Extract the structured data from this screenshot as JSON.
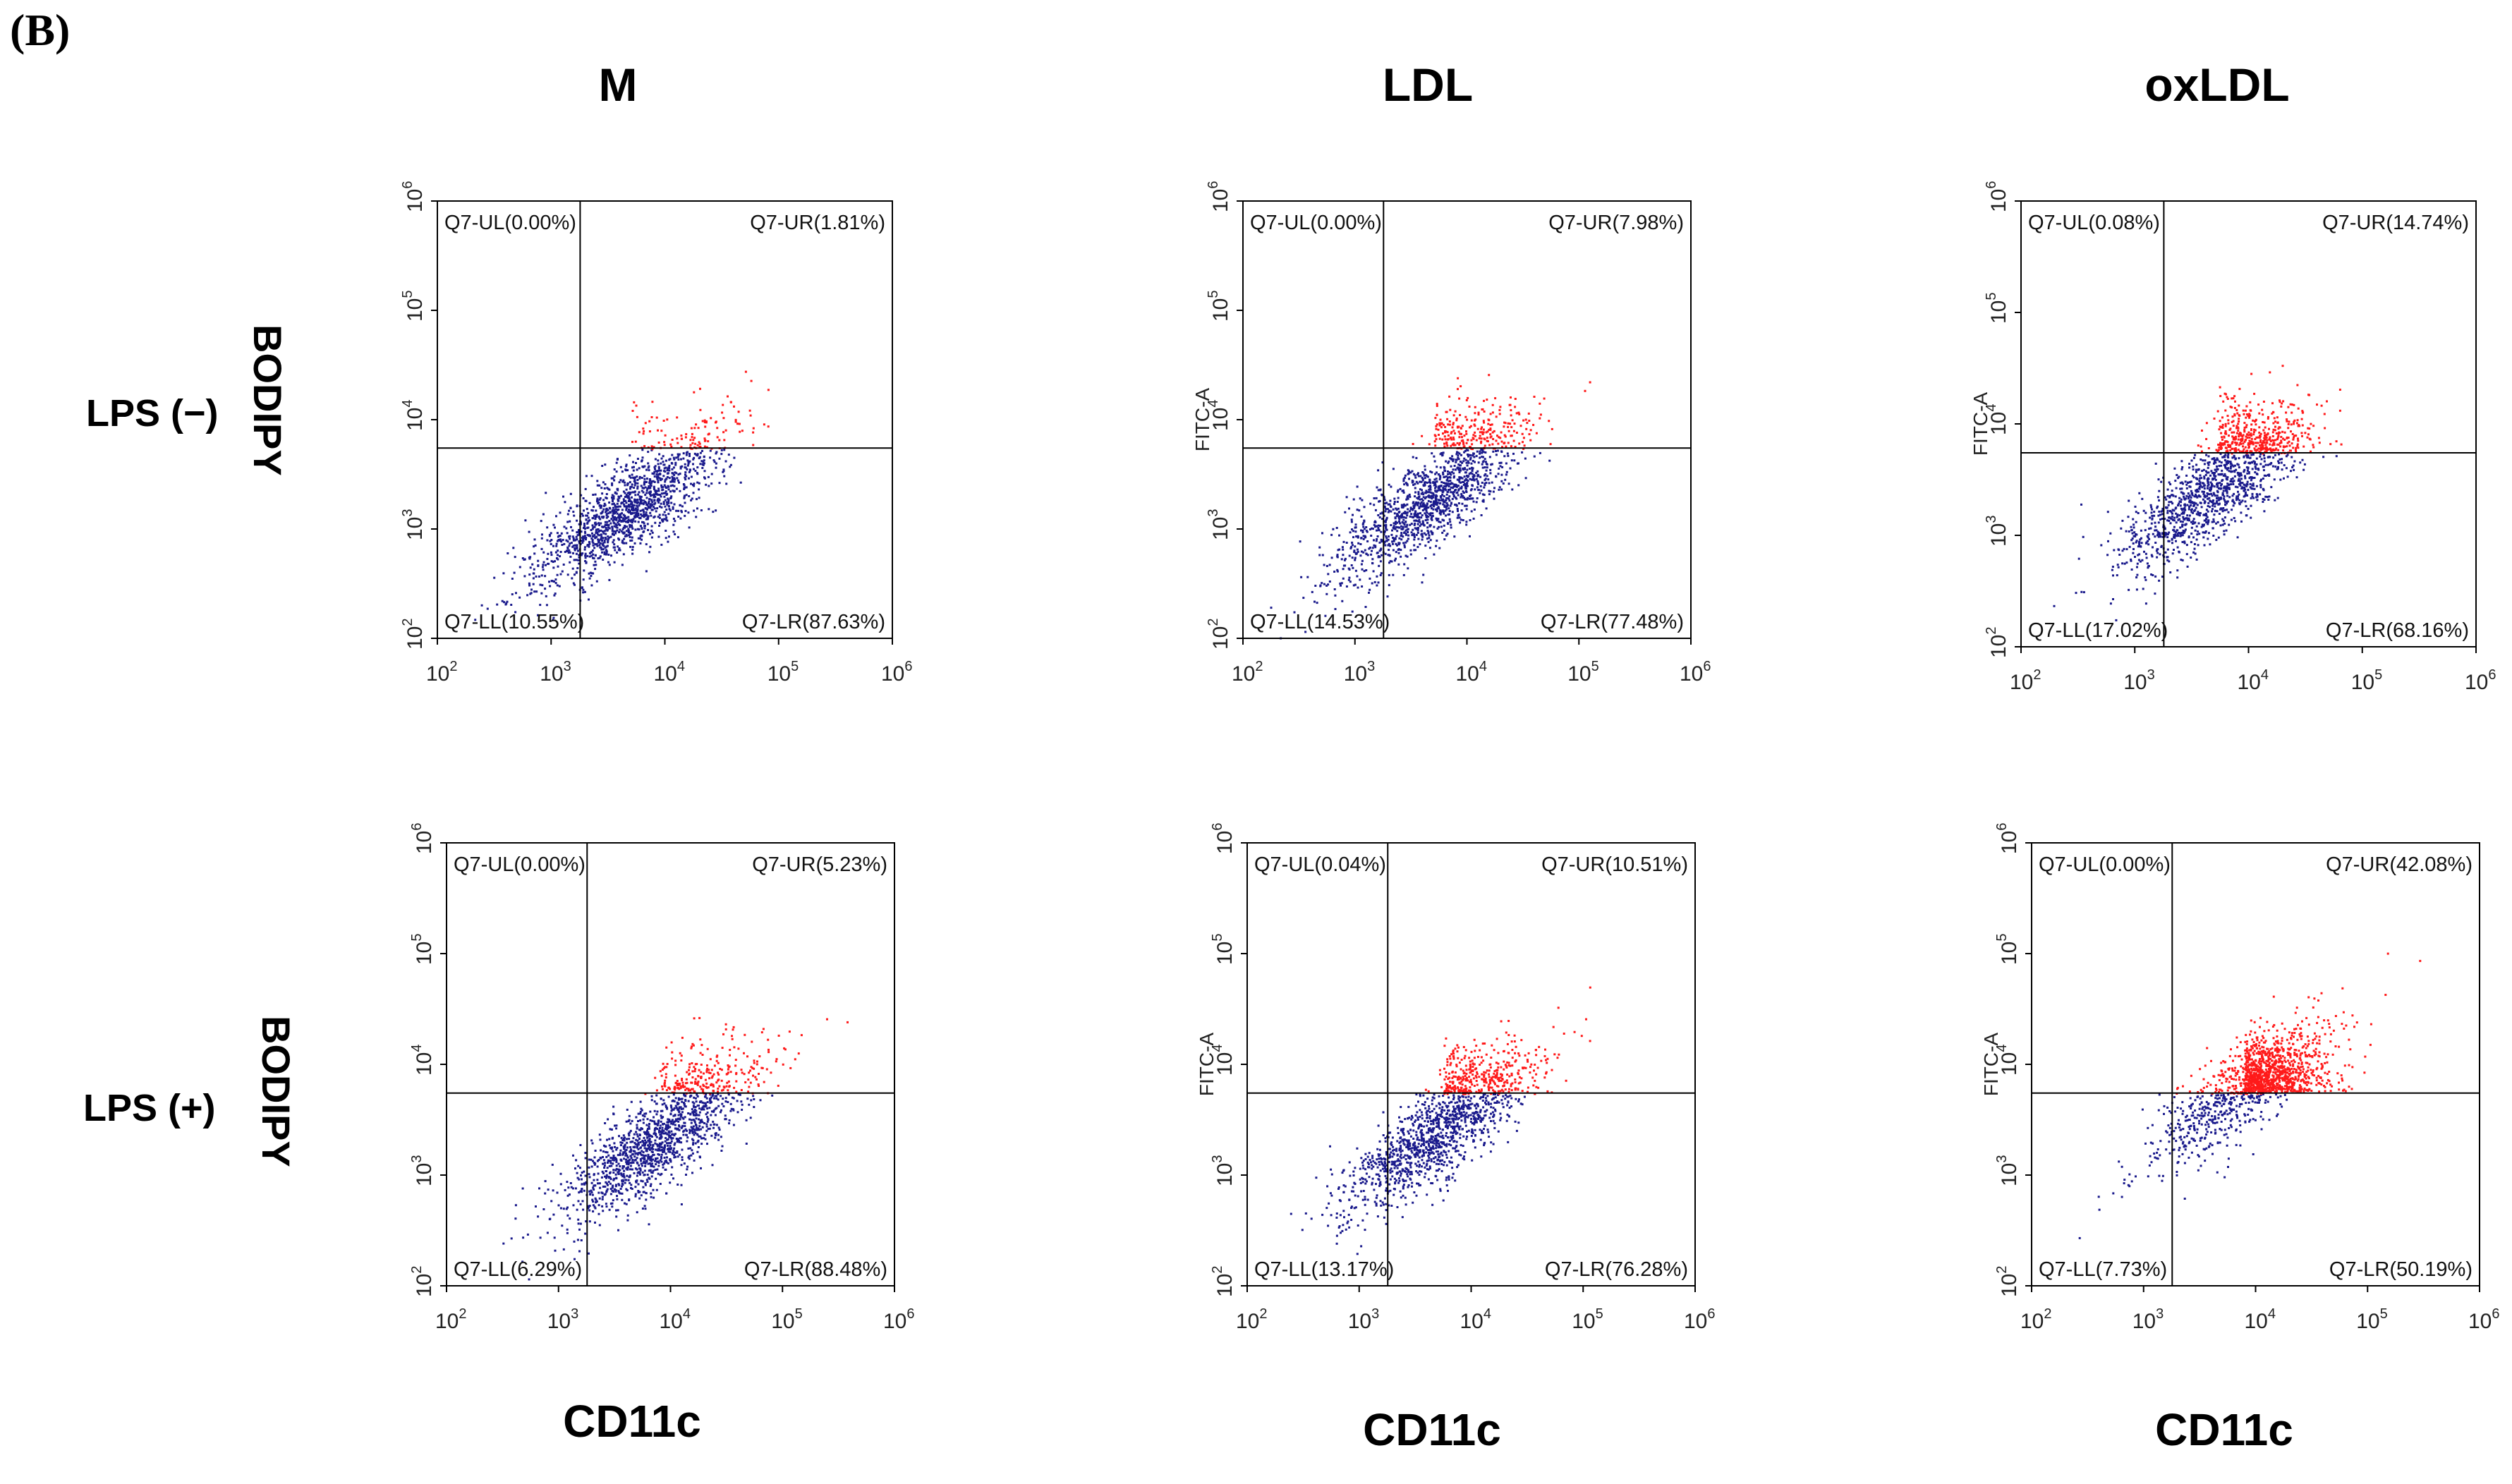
{
  "figure": {
    "panel_label": "(B)",
    "columns": [
      "M",
      "LDL",
      "oxLDL"
    ],
    "rows": [
      "LPS (−)",
      "LPS (+)"
    ],
    "y_marker": "BODIPY",
    "x_marker": "CD11c"
  },
  "chart_data": [
    {
      "type": "scatter",
      "title": "M",
      "row": "LPS (−)",
      "xscale": "log",
      "yscale": "log",
      "xlim": [
        100,
        1000000
      ],
      "ylim": [
        100,
        1000000
      ],
      "ylabel": "",
      "x_ticks": [
        "10",
        "10",
        "10",
        "10",
        "10"
      ],
      "x_tick_exp": [
        "2",
        "3",
        "4",
        "5",
        "6"
      ],
      "y_ticks": [
        "10",
        "10",
        "10",
        "10",
        "10"
      ],
      "y_tick_exp": [
        "2",
        "3",
        "4",
        "5",
        "6"
      ],
      "gate_x": 1800,
      "gate_y": 5500,
      "quadrants": {
        "UL": "Q7-UL(0.00%)",
        "UR": "Q7-UR(1.81%)",
        "LL": "Q7-LL(10.55%)",
        "LR": "Q7-LR(87.63%)"
      },
      "cloud": {
        "center_x": 4500,
        "center_y": 1500,
        "n_points": 1500,
        "ur_percent": 1.81
      }
    },
    {
      "type": "scatter",
      "title": "LDL",
      "row": "LPS (−)",
      "xscale": "log",
      "yscale": "log",
      "xlim": [
        100,
        1000000
      ],
      "ylim": [
        100,
        1000000
      ],
      "ylabel": "FITC-A",
      "x_ticks": [
        "10",
        "10",
        "10",
        "10",
        "10"
      ],
      "x_tick_exp": [
        "2",
        "3",
        "4",
        "5",
        "6"
      ],
      "y_ticks": [
        "10",
        "10",
        "10",
        "10",
        "10"
      ],
      "y_tick_exp": [
        "2",
        "3",
        "4",
        "5",
        "6"
      ],
      "gate_x": 1800,
      "gate_y": 5500,
      "quadrants": {
        "UL": "Q7-UL(0.00%)",
        "UR": "Q7-UR(7.98%)",
        "LL": "Q7-LL(14.53%)",
        "LR": "Q7-LR(77.48%)"
      },
      "cloud": {
        "center_x": 4500,
        "center_y": 1800,
        "n_points": 1500,
        "ur_percent": 7.98
      }
    },
    {
      "type": "scatter",
      "title": "oxLDL",
      "row": "LPS (−)",
      "xscale": "log",
      "yscale": "log",
      "xlim": [
        100,
        1000000
      ],
      "ylim": [
        100,
        1000000
      ],
      "ylabel": "FITC-A",
      "x_ticks": [
        "10",
        "10",
        "10",
        "10",
        "10"
      ],
      "x_tick_exp": [
        "2",
        "3",
        "4",
        "5",
        "6"
      ],
      "y_ticks": [
        "10",
        "10",
        "10",
        "10",
        "10"
      ],
      "y_tick_exp": [
        "2",
        "3",
        "4",
        "5",
        "6"
      ],
      "gate_x": 1800,
      "gate_y": 5500,
      "quadrants": {
        "UL": "Q7-UL(0.08%)",
        "UR": "Q7-UR(14.74%)",
        "LL": "Q7-LL(17.02%)",
        "LR": "Q7-LR(68.16%)"
      },
      "cloud": {
        "center_x": 4800,
        "center_y": 2500,
        "n_points": 1500,
        "ur_percent": 14.74
      }
    },
    {
      "type": "scatter",
      "title": "M",
      "row": "LPS (+)",
      "xscale": "log",
      "yscale": "log",
      "xlim": [
        100,
        1000000
      ],
      "ylim": [
        100,
        1000000
      ],
      "ylabel": "",
      "x_ticks": [
        "10",
        "10",
        "10",
        "10",
        "10"
      ],
      "x_tick_exp": [
        "2",
        "3",
        "4",
        "5",
        "6"
      ],
      "y_ticks": [
        "10",
        "10",
        "10",
        "10",
        "10"
      ],
      "y_tick_exp": [
        "2",
        "3",
        "4",
        "5",
        "6"
      ],
      "gate_x": 1800,
      "gate_y": 5500,
      "quadrants": {
        "UL": "Q7-UL(0.00%)",
        "UR": "Q7-UR(5.23%)",
        "LL": "Q7-LL(6.29%)",
        "LR": "Q7-LR(88.48%)"
      },
      "cloud": {
        "center_x": 7000,
        "center_y": 2000,
        "n_points": 1500,
        "ur_percent": 5.23
      }
    },
    {
      "type": "scatter",
      "title": "LDL",
      "row": "LPS (+)",
      "xscale": "log",
      "yscale": "log",
      "xlim": [
        100,
        1000000
      ],
      "ylim": [
        100,
        1000000
      ],
      "ylabel": "FITC-A",
      "x_ticks": [
        "10",
        "10",
        "10",
        "10",
        "10"
      ],
      "x_tick_exp": [
        "2",
        "3",
        "4",
        "5",
        "6"
      ],
      "y_ticks": [
        "10",
        "10",
        "10",
        "10",
        "10"
      ],
      "y_tick_exp": [
        "2",
        "3",
        "4",
        "5",
        "6"
      ],
      "gate_x": 1800,
      "gate_y": 5500,
      "quadrants": {
        "UL": "Q7-UL(0.04%)",
        "UR": "Q7-UR(10.51%)",
        "LL": "Q7-LL(13.17%)",
        "LR": "Q7-LR(76.28%)"
      },
      "cloud": {
        "center_x": 5000,
        "center_y": 2500,
        "n_points": 1500,
        "ur_percent": 10.51
      }
    },
    {
      "type": "scatter",
      "title": "oxLDL",
      "row": "LPS (+)",
      "xscale": "log",
      "yscale": "log",
      "xlim": [
        100,
        1000000
      ],
      "ylim": [
        100,
        1000000
      ],
      "ylabel": "FITC-A",
      "x_ticks": [
        "10",
        "10",
        "10",
        "10",
        "10"
      ],
      "x_tick_exp": [
        "2",
        "3",
        "4",
        "5",
        "6"
      ],
      "y_ticks": [
        "10",
        "10",
        "10",
        "10",
        "10"
      ],
      "y_tick_exp": [
        "2",
        "3",
        "4",
        "5",
        "6"
      ],
      "gate_x": 1800,
      "gate_y": 5500,
      "quadrants": {
        "UL": "Q7-UL(0.00%)",
        "UR": "Q7-UR(42.08%)",
        "LL": "Q7-LL(7.73%)",
        "LR": "Q7-LR(50.19%)"
      },
      "cloud": {
        "center_x": 7000,
        "center_y": 5500,
        "n_points": 1500,
        "ur_percent": 42.08
      }
    }
  ],
  "colors": {
    "gated_out": "#1a1a8c",
    "gated_in": "#ff1a1a",
    "axis": "#000000"
  }
}
